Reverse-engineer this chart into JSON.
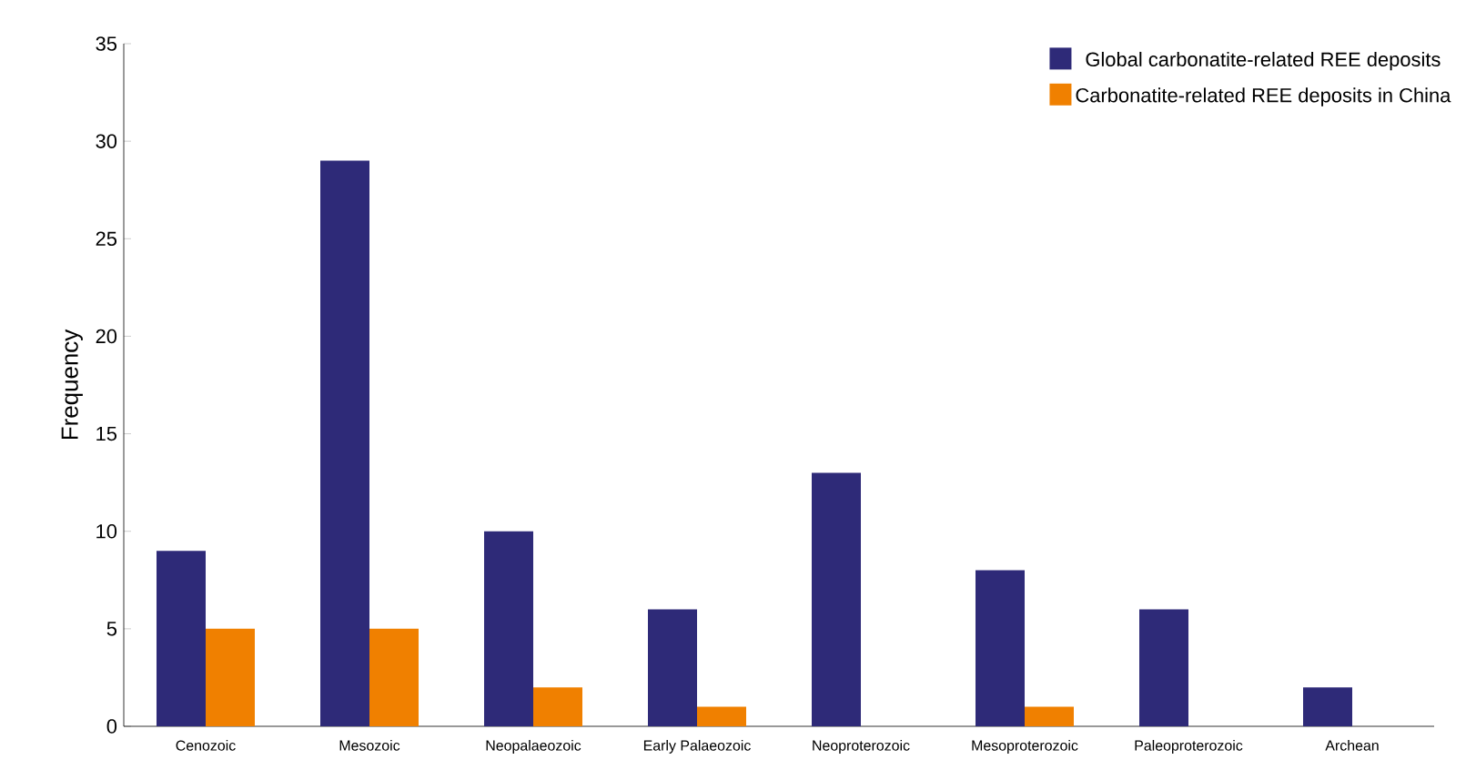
{
  "chart_data": {
    "type": "bar",
    "ylabel": "Frequency",
    "categories": [
      "Cenozoic",
      "Mesozoic",
      "Neopalaeozoic",
      "Early Palaeozoic",
      "Neoproterozoic",
      "Mesoproterozoic",
      "Paleoproterozoic",
      "Archean"
    ],
    "series": [
      {
        "name": "Global carbonatite-related REE deposits",
        "color": "#2e2a78",
        "values": [
          9,
          29,
          10,
          6,
          13,
          8,
          6,
          2
        ]
      },
      {
        "name": "Carbonatite-related REE deposits in China",
        "color": "#f08000",
        "values": [
          5,
          5,
          2,
          1,
          null,
          1,
          null,
          null
        ]
      }
    ],
    "ylim": [
      0,
      35
    ],
    "yticks": [
      0,
      5,
      10,
      15,
      20,
      25,
      30,
      35
    ],
    "grid": false,
    "legend": "top right"
  }
}
